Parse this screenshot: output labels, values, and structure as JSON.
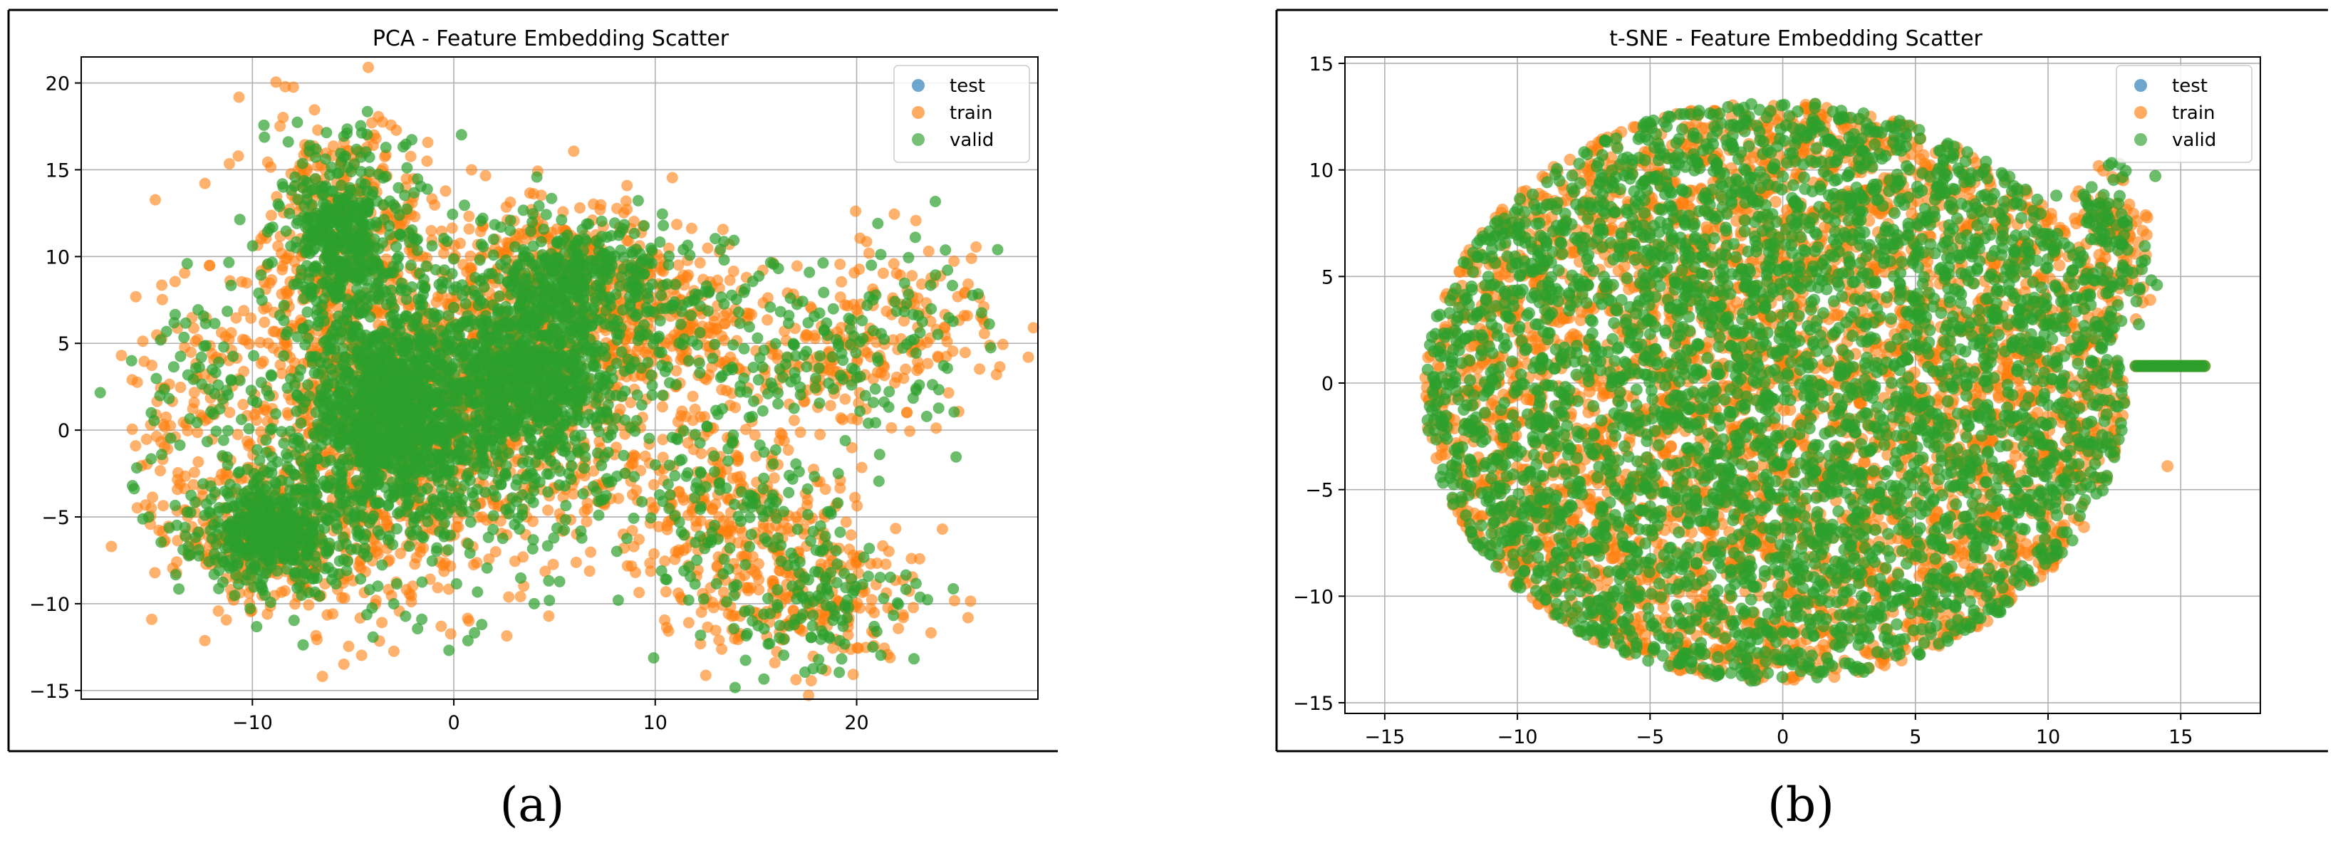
{
  "chart_data": [
    {
      "type": "scatter",
      "title": "PCA - Feature Embedding Scatter",
      "xlabel": "",
      "ylabel": "",
      "xlim": [
        -18.5,
        29
      ],
      "ylim": [
        -15.5,
        21.5
      ],
      "xticks": [
        -10,
        0,
        10,
        20
      ],
      "yticks": [
        -15,
        -10,
        -5,
        0,
        5,
        10,
        15,
        20
      ],
      "grid": true,
      "legend_position": "top-right",
      "series": [
        {
          "name": "test",
          "color": "#1f77b4"
        },
        {
          "name": "train",
          "color": "#ff7f0e"
        },
        {
          "name": "valid",
          "color": "#2ca02c"
        }
      ],
      "point_cloud": {
        "blobs": [
          {
            "cx": -3,
            "cy": 1,
            "sx": 4,
            "sy": 5,
            "n": 1600,
            "cores": true
          },
          {
            "cx": 4,
            "cy": 3,
            "sx": 3.5,
            "sy": 4,
            "n": 1000,
            "cores": true
          },
          {
            "cx": -9,
            "cy": -6,
            "sx": 2.5,
            "sy": 2,
            "n": 550,
            "cores": true
          },
          {
            "cx": -5.5,
            "cy": 11,
            "sx": 2,
            "sy": 3.5,
            "n": 520,
            "cores": true
          },
          {
            "cx": 6,
            "cy": 9,
            "sx": 3,
            "sy": 2,
            "n": 360,
            "cores": true
          },
          {
            "cx": 14,
            "cy": -5,
            "sx": 3,
            "sy": 3,
            "n": 420,
            "cores": false
          },
          {
            "cx": 18,
            "cy": -10,
            "sx": 2.5,
            "sy": 2,
            "n": 300,
            "cores": false
          },
          {
            "cx": 18,
            "cy": 4,
            "sx": 3.5,
            "sy": 2.5,
            "n": 320,
            "cores": false
          },
          {
            "cx": 23,
            "cy": 7,
            "sx": 2.5,
            "sy": 2,
            "n": 110,
            "cores": false
          },
          {
            "cx": -13,
            "cy": 2,
            "sx": 1.5,
            "sy": 4,
            "n": 160,
            "cores": false
          },
          {
            "cx": 11,
            "cy": 7,
            "sx": 2,
            "sy": 2,
            "n": 200,
            "cores": false
          }
        ],
        "extra_points": [
          [
            -16.5,
            4.3
          ],
          [
            -16,
            4
          ],
          [
            -17,
            -6.7
          ],
          [
            27,
            10.4
          ],
          [
            -15,
            -10.9
          ],
          [
            21,
            -11.6
          ]
        ]
      }
    },
    {
      "type": "scatter",
      "title": "t-SNE - Feature Embedding Scatter",
      "xlabel": "",
      "ylabel": "",
      "xlim": [
        -16.5,
        18
      ],
      "ylim": [
        -15.5,
        15.3
      ],
      "xticks": [
        -15,
        -10,
        -5,
        0,
        5,
        10,
        15
      ],
      "yticks": [
        -15,
        -10,
        -5,
        0,
        5,
        10,
        15
      ],
      "grid": true,
      "legend_position": "top-right",
      "series": [
        {
          "name": "test",
          "color": "#1f77b4"
        },
        {
          "name": "train",
          "color": "#ff7f0e"
        },
        {
          "name": "valid",
          "color": "#2ca02c"
        }
      ],
      "point_cloud": {
        "region": {
          "cx": -0.3,
          "cy": -0.4,
          "rx": 13.2,
          "ry": 13.6
        },
        "n": 7500,
        "islands": [
          {
            "cx": 12.8,
            "cy": 5.8,
            "sx": 0.6,
            "sy": 1.8,
            "n": 120
          },
          {
            "cx": 11.8,
            "cy": 8.0,
            "sx": 0.5,
            "sy": 1.0,
            "n": 60
          }
        ],
        "strip": {
          "y": 0.8,
          "x_from": 13.3,
          "x_to": 15.9,
          "n": 40
        },
        "extra_points": [
          [
            14.5,
            -3.9
          ]
        ]
      }
    }
  ],
  "captions": {
    "a": "(a)",
    "b": "(b)"
  }
}
